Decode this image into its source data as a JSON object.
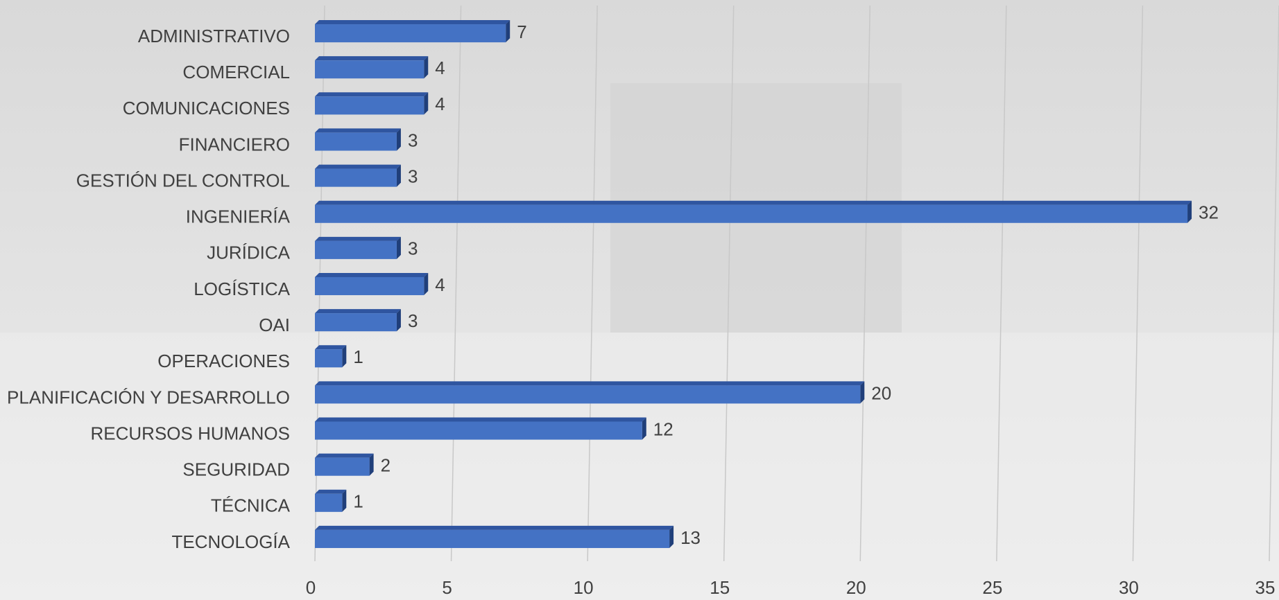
{
  "chart_data": {
    "type": "bar",
    "orientation": "horizontal",
    "categories": [
      "ADMINISTRATIVO",
      "COMERCIAL",
      "COMUNICACIONES",
      "FINANCIERO",
      "GESTIÓN DEL CONTROL",
      "INGENIERÍA",
      "JURÍDICA",
      "LOGÍSTICA",
      "OAI",
      "OPERACIONES",
      "PLANIFICACIÓN Y DESARROLLO",
      "RECURSOS HUMANOS",
      "SEGURIDAD",
      "TÉCNICA",
      "TECNOLOGÍA"
    ],
    "values": [
      7,
      4,
      4,
      3,
      3,
      32,
      3,
      4,
      3,
      1,
      20,
      12,
      2,
      1,
      13
    ],
    "color": "#4472c4",
    "xlim": [
      0,
      35
    ],
    "xticks": [
      0,
      5,
      10,
      15,
      20,
      25,
      30,
      35
    ],
    "grid": true
  }
}
